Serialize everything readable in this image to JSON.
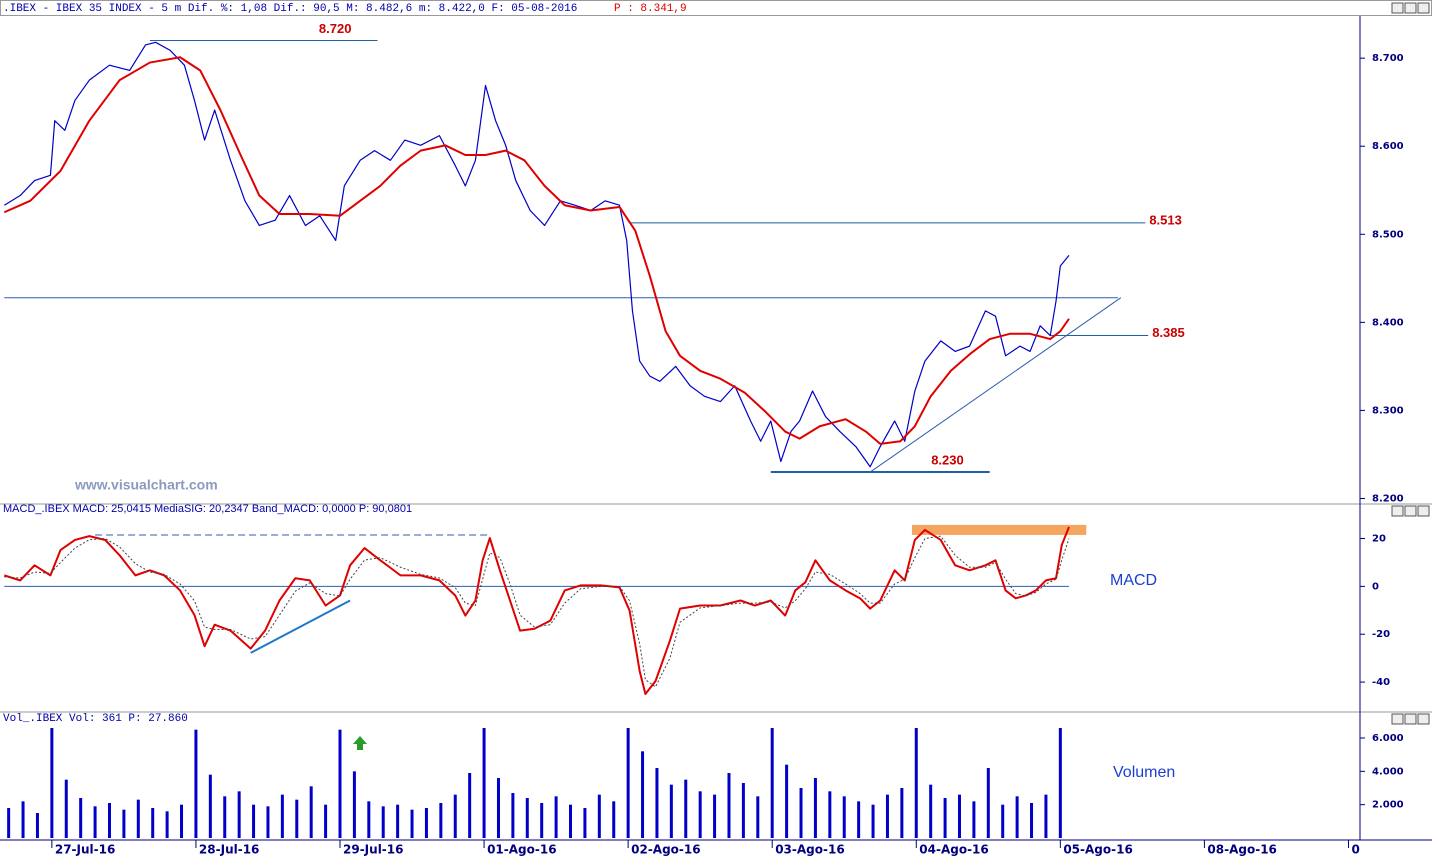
{
  "header": {
    "title": ".IBEX - IBEX 35 INDEX -  5 m Dif. %: 1,08 Dif.: 90,5 M: 8.482,6 m: 8.422,0 F: 05-08-2016",
    "price": "P : 8.341,9"
  },
  "chart_data": [
    {
      "type": "line",
      "watermark": "www.visualchart.com",
      "xlim": [
        -0.36,
        9.08
      ],
      "ylim": [
        8196,
        8749
      ],
      "yticks": [
        {
          "value": 8200,
          "label": "8.200"
        },
        {
          "value": 8300,
          "label": "8.300"
        },
        {
          "value": 8400,
          "label": "8.400"
        },
        {
          "value": 8500,
          "label": "8.500"
        },
        {
          "value": 8600,
          "label": "8.600"
        },
        {
          "value": 8700,
          "label": "8.700"
        }
      ],
      "series": [
        {
          "color": "#0000c8",
          "x": [
            -0.33,
            -0.22,
            -0.12,
            -0.01,
            0.02,
            0.09,
            0.16,
            0.26,
            0.4,
            0.54,
            0.65,
            0.72,
            0.82,
            0.92,
            0.99,
            1.06,
            1.13,
            1.24,
            1.34,
            1.44,
            1.55,
            1.65,
            1.76,
            1.86,
            1.97,
            2.03,
            2.14,
            2.24,
            2.35,
            2.45,
            2.56,
            2.69,
            2.8,
            2.87,
            2.94,
            3.01,
            3.08,
            3.15,
            3.22,
            3.32,
            3.42,
            3.53,
            3.63,
            3.74,
            3.84,
            3.94,
            3.99,
            4.03,
            4.08,
            4.15,
            4.22,
            4.33,
            4.43,
            4.53,
            4.64,
            4.74,
            4.85,
            4.92,
            4.99,
            5.06,
            5.13,
            5.19,
            5.28,
            5.37,
            5.47,
            5.58,
            5.68,
            5.75,
            5.85,
            5.92,
            5.99,
            6.06,
            6.17,
            6.27,
            6.37,
            6.48,
            6.55,
            6.62,
            6.72,
            6.79,
            6.86,
            6.93,
            6.97,
            7.0,
            7.06
          ],
          "values": [
            8533,
            8544,
            8561,
            8567,
            8629,
            8618,
            8652,
            8675,
            8692,
            8686,
            8715,
            8718,
            8709,
            8692,
            8652,
            8607,
            8641,
            8584,
            8538,
            8510,
            8516,
            8544,
            8510,
            8521,
            8493,
            8555,
            8584,
            8595,
            8584,
            8607,
            8601,
            8612,
            8578,
            8555,
            8584,
            8669,
            8629,
            8601,
            8561,
            8527,
            8510,
            8538,
            8533,
            8527,
            8538,
            8533,
            8493,
            8413,
            8356,
            8339,
            8333,
            8350,
            8328,
            8316,
            8310,
            8328,
            8288,
            8265,
            8288,
            8242,
            8276,
            8288,
            8322,
            8293,
            8276,
            8259,
            8236,
            8259,
            8288,
            8265,
            8322,
            8356,
            8379,
            8367,
            8373,
            8413,
            8407,
            8362,
            8373,
            8367,
            8396,
            8385,
            8424,
            8464,
            8476
          ]
        },
        {
          "color": "#e00000",
          "x": [
            -0.33,
            -0.15,
            0.06,
            0.26,
            0.47,
            0.68,
            0.89,
            1.03,
            1.17,
            1.31,
            1.44,
            1.58,
            1.79,
            2.0,
            2.14,
            2.28,
            2.42,
            2.56,
            2.73,
            2.87,
            3.01,
            3.15,
            3.28,
            3.42,
            3.56,
            3.74,
            3.94,
            4.05,
            4.15,
            4.26,
            4.36,
            4.5,
            4.64,
            4.81,
            4.95,
            5.09,
            5.19,
            5.33,
            5.51,
            5.65,
            5.75,
            5.89,
            5.99,
            6.1,
            6.24,
            6.38,
            6.51,
            6.65,
            6.79,
            6.93,
            7.0,
            7.06
          ],
          "values": [
            8525,
            8538,
            8572,
            8629,
            8675,
            8695,
            8701,
            8686,
            8641,
            8590,
            8544,
            8523,
            8523,
            8521,
            8538,
            8555,
            8578,
            8595,
            8601,
            8590,
            8590,
            8595,
            8584,
            8555,
            8533,
            8527,
            8531,
            8504,
            8453,
            8390,
            8362,
            8345,
            8336,
            8320,
            8299,
            8276,
            8268,
            8282,
            8290,
            8276,
            8262,
            8265,
            8282,
            8316,
            8345,
            8365,
            8381,
            8387,
            8387,
            8381,
            8390,
            8404
          ]
        }
      ],
      "annotations": [
        {
          "label": "8.720",
          "value": 8720,
          "x": [
            0.68,
            2.26
          ]
        },
        {
          "label": "8.513",
          "value": 8513,
          "x": [
            4.01,
            7.59
          ]
        },
        {
          "label": "8.385",
          "value": 8385,
          "x": [
            6.93,
            7.61
          ]
        },
        {
          "label": "8.230",
          "value": 8230,
          "x": [
            4.99,
            6.51
          ]
        }
      ],
      "lines": [
        {
          "x": [
            -0.33,
            7.4
          ],
          "y": [
            8428,
            8428
          ]
        },
        {
          "x": [
            5.68,
            7.42
          ],
          "y": [
            8230,
            8428
          ]
        }
      ]
    },
    {
      "type": "line",
      "title": "MACD_.IBEX MACD: 25,0415 MediaSIG: 20,2347 Band_MACD: 0,0000 P: 90,0801",
      "label": "MACD",
      "xlim": [
        -0.36,
        9.08
      ],
      "ylim": [
        -50,
        29
      ],
      "yticks": [
        -40,
        -20,
        0,
        20
      ],
      "series": [
        {
          "color": "#e00000",
          "x": [
            -0.33,
            -0.22,
            -0.12,
            -0.01,
            0.06,
            0.16,
            0.26,
            0.37,
            0.47,
            0.58,
            0.68,
            0.78,
            0.89,
            0.99,
            1.06,
            1.13,
            1.24,
            1.38,
            1.48,
            1.58,
            1.69,
            1.79,
            1.9,
            2.0,
            2.07,
            2.17,
            2.28,
            2.42,
            2.56,
            2.69,
            2.8,
            2.87,
            2.94,
            2.99,
            3.04,
            3.11,
            3.18,
            3.25,
            3.35,
            3.46,
            3.56,
            3.67,
            3.81,
            3.94,
            4.01,
            4.08,
            4.12,
            4.19,
            4.29,
            4.36,
            4.5,
            4.64,
            4.78,
            4.88,
            4.99,
            5.09,
            5.16,
            5.23,
            5.3,
            5.4,
            5.51,
            5.61,
            5.68,
            5.75,
            5.85,
            5.92,
            5.99,
            6.06,
            6.17,
            6.27,
            6.37,
            6.48,
            6.55,
            6.62,
            6.69,
            6.76,
            6.83,
            6.9,
            6.97,
            7.01,
            7.06
          ],
          "values": [
            4.6,
            2.5,
            8.8,
            4.6,
            15.2,
            19.4,
            21,
            19.4,
            13,
            4.6,
            6.7,
            4.6,
            -1.7,
            -12,
            -25,
            -16,
            -18.5,
            -26,
            -18.5,
            -5.9,
            3.4,
            2.5,
            -8,
            -3.8,
            8.8,
            16,
            10.9,
            4.6,
            4.6,
            2.5,
            -3.8,
            -12.2,
            -5.9,
            10.9,
            20.2,
            6.7,
            -5.9,
            -18.5,
            -17.7,
            -14.3,
            -1.7,
            0.4,
            0.4,
            -0.4,
            -10.1,
            -35.4,
            -45,
            -39.6,
            -22.7,
            -9.3,
            -8,
            -8,
            -5.9,
            -8,
            -5.9,
            -12.2,
            -1.7,
            1.7,
            10.9,
            2.5,
            -1.7,
            -5,
            -9.3,
            -5.9,
            6.7,
            2.5,
            19.4,
            23.6,
            19.4,
            8.8,
            6.7,
            8.8,
            10.9,
            -1.7,
            -5,
            -3.8,
            -1.7,
            2.5,
            3.4,
            17.3,
            24.8
          ]
        },
        {
          "color": "#444444",
          "dash": true,
          "x": [
            -0.33,
            -0.22,
            -0.12,
            -0.01,
            0.06,
            0.16,
            0.26,
            0.37,
            0.47,
            0.58,
            0.68,
            0.78,
            0.89,
            0.99,
            1.06,
            1.13,
            1.24,
            1.38,
            1.48,
            1.58,
            1.69,
            1.79,
            1.9,
            2.0,
            2.07,
            2.17,
            2.28,
            2.42,
            2.56,
            2.69,
            2.8,
            2.87,
            2.94,
            2.99,
            3.04,
            3.11,
            3.18,
            3.25,
            3.35,
            3.46,
            3.56,
            3.67,
            3.81,
            3.94,
            4.01,
            4.08,
            4.12,
            4.19,
            4.29,
            4.36,
            4.5,
            4.64,
            4.78,
            4.88,
            4.99,
            5.09,
            5.16,
            5.23,
            5.3,
            5.4,
            5.51,
            5.61,
            5.68,
            5.75,
            5.85,
            5.92,
            5.99,
            6.06,
            6.17,
            6.27,
            6.37,
            6.48,
            6.55,
            6.62,
            6.69,
            6.76,
            6.83,
            6.9,
            6.97,
            7.01,
            7.06
          ],
          "values": [
            4,
            3.5,
            6,
            5.5,
            10,
            16,
            19.5,
            20,
            16.5,
            9.5,
            6,
            5,
            1,
            -6,
            -17,
            -18,
            -18,
            -22,
            -21,
            -12,
            -2,
            1.5,
            -3,
            -4,
            3,
            11,
            12,
            8,
            5,
            3.5,
            -0.5,
            -7,
            -8,
            3,
            14,
            12,
            1,
            -12,
            -17,
            -16,
            -7,
            -1,
            0,
            0,
            -6,
            -24,
            -39,
            -42,
            -30,
            -15,
            -9,
            -8,
            -7,
            -7,
            -6.5,
            -9,
            -6,
            -1,
            6,
            5,
            1,
            -3,
            -7,
            -7,
            1,
            3,
            12,
            20,
            21,
            13,
            8,
            8,
            10,
            3,
            -3,
            -4,
            -2.5,
            1,
            3,
            11,
            20
          ]
        }
      ],
      "lines": [
        {
          "x": [
            -0.33,
            7.06
          ],
          "y": [
            0,
            0
          ]
        },
        {
          "x": [
            0.3,
            3.04
          ],
          "y": [
            21.5,
            21.5
          ],
          "dash": true
        },
        {
          "x": [
            1.38,
            2.07
          ],
          "y": [
            -27.8,
            -5.9
          ]
        }
      ],
      "highlight": {
        "x": [
          5.97,
          7.18
        ],
        "y": [
          21.5,
          25.7
        ],
        "color": "#f5a55f"
      }
    },
    {
      "type": "bar",
      "title": "Vol_.IBEX Vol: 361 P: 27.860",
      "label": "Volumen",
      "color": "#0000c8",
      "xlim": [
        -0.36,
        9.08
      ],
      "ylim": [
        0,
        6780
      ],
      "yticks": [
        {
          "value": 2000,
          "label": "2.000"
        },
        {
          "value": 4000,
          "label": "4.000"
        },
        {
          "value": 6000,
          "label": "6.000"
        }
      ],
      "xticks": [
        {
          "value": 0,
          "label": "27-Jul-16"
        },
        {
          "value": 1,
          "label": "28-Jul-16"
        },
        {
          "value": 2,
          "label": "29-Jul-16"
        },
        {
          "value": 3,
          "label": "01-Ago-16"
        },
        {
          "value": 4,
          "label": "02-Ago-16"
        },
        {
          "value": 5,
          "label": "03-Ago-16"
        },
        {
          "value": 6,
          "label": "04-Ago-16"
        },
        {
          "value": 7,
          "label": "05-Ago-16"
        },
        {
          "value": 8,
          "label": "08-Ago-16"
        },
        {
          "value": 9,
          "label": "0"
        }
      ],
      "x": [
        -0.3,
        -0.2,
        -0.1,
        0.0,
        0.1,
        0.2,
        0.3,
        0.4,
        0.5,
        0.6,
        0.7,
        0.8,
        0.9,
        1.0,
        1.1,
        1.2,
        1.3,
        1.4,
        1.5,
        1.6,
        1.7,
        1.8,
        1.9,
        2.0,
        2.1,
        2.2,
        2.3,
        2.4,
        2.5,
        2.6,
        2.7,
        2.8,
        2.9,
        3.0,
        3.1,
        3.2,
        3.3,
        3.4,
        3.5,
        3.6,
        3.7,
        3.8,
        3.9,
        4.0,
        4.1,
        4.2,
        4.3,
        4.4,
        4.5,
        4.6,
        4.7,
        4.8,
        4.9,
        5.0,
        5.1,
        5.2,
        5.3,
        5.4,
        5.5,
        5.6,
        5.7,
        5.8,
        5.9,
        6.0,
        6.1,
        6.2,
        6.3,
        6.4,
        6.5,
        6.6,
        6.7,
        6.8,
        6.9,
        7.0
      ],
      "values": [
        1800,
        2200,
        1500,
        6600,
        3500,
        2400,
        1900,
        2100,
        1700,
        2300,
        1800,
        1600,
        2000,
        6500,
        3800,
        2500,
        2800,
        2000,
        1900,
        2600,
        2300,
        3100,
        2000,
        6500,
        4000,
        2200,
        1900,
        2000,
        1700,
        1800,
        2100,
        2600,
        3900,
        6600,
        3600,
        2700,
        2400,
        2100,
        2500,
        2000,
        1800,
        2600,
        2200,
        6600,
        5200,
        4200,
        3200,
        3500,
        2800,
        2600,
        3900,
        3300,
        2500,
        6600,
        4400,
        3000,
        3600,
        2800,
        2500,
        2200,
        2000,
        2600,
        3000,
        6600,
        3200,
        2400,
        2600,
        2200,
        4200,
        2000,
        2500,
        2100,
        2600,
        6600
      ]
    }
  ]
}
